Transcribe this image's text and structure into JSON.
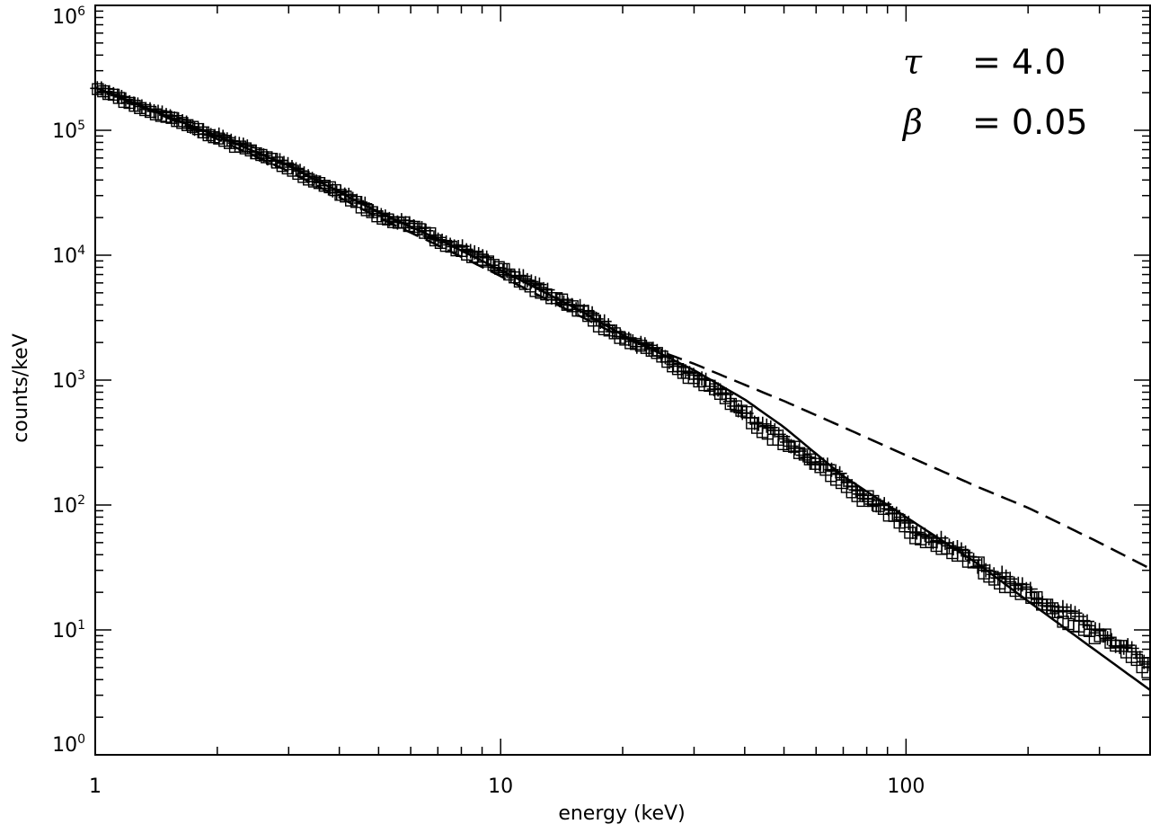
{
  "chart_data": {
    "type": "scatter",
    "title": "",
    "xlabel": "energy (keV)",
    "ylabel": "counts/keV",
    "xscale": "log",
    "yscale": "log",
    "xlim": [
      1,
      400
    ],
    "ylim": [
      1,
      1000000
    ],
    "x_tick_labels": [
      "1",
      "10",
      "100"
    ],
    "y_tick_labels": [
      {
        "base": "10",
        "exp": "0"
      },
      {
        "base": "10",
        "exp": "1"
      },
      {
        "base": "10",
        "exp": "2"
      },
      {
        "base": "10",
        "exp": "3"
      },
      {
        "base": "10",
        "exp": "4"
      },
      {
        "base": "10",
        "exp": "5"
      },
      {
        "base": "10",
        "exp": "6"
      }
    ],
    "annotations": [
      {
        "symbol": "τ",
        "text": "= 4.0"
      },
      {
        "symbol": "β",
        "text": "= 0.05"
      }
    ],
    "series": [
      {
        "name": "data (plus markers)",
        "marker": "plus",
        "x": [
          1.0,
          1.5,
          2.0,
          3.0,
          5.0,
          7.0,
          10.0,
          15.0,
          20.0,
          30.0,
          50.0,
          70.0,
          100.0,
          150.0,
          200.0,
          300.0,
          400.0
        ],
        "y": [
          220000,
          130000,
          90000,
          52000,
          22000,
          14000,
          8000,
          4000,
          2300,
          1100,
          330,
          160,
          70,
          35,
          20,
          10,
          5
        ]
      },
      {
        "name": "data (square markers)",
        "marker": "square",
        "x": [
          1.0,
          1.5,
          2.0,
          3.0,
          5.0,
          7.0,
          10.0,
          15.0,
          20.0,
          30.0,
          50.0,
          70.0,
          100.0,
          150.0,
          200.0,
          300.0,
          400.0
        ],
        "y": [
          215000,
          127000,
          88000,
          50000,
          21000,
          13500,
          7600,
          3800,
          2200,
          1050,
          310,
          150,
          65,
          32,
          18,
          9,
          4.7
        ]
      },
      {
        "name": "model (solid)",
        "line": "solid",
        "x": [
          1.0,
          1.5,
          2.0,
          3.0,
          5.0,
          7.0,
          10.0,
          15.0,
          20.0,
          30.0,
          40.0,
          50.0,
          70.0,
          100.0,
          150.0,
          200.0,
          300.0,
          400.0
        ],
        "y": [
          220000,
          130000,
          90000,
          52000,
          22000,
          13500,
          7600,
          3900,
          2300,
          1200,
          700,
          420,
          170,
          80,
          34,
          17,
          6.5,
          3.3
        ]
      },
      {
        "name": "model (dashed)",
        "line": "dashed",
        "x": [
          1.0,
          1.5,
          2.0,
          3.0,
          5.0,
          7.0,
          10.0,
          15.0,
          20.0,
          30.0,
          50.0,
          70.0,
          100.0,
          150.0,
          200.0,
          300.0,
          400.0
        ],
        "y": [
          220000,
          127000,
          85000,
          47000,
          20000,
          12000,
          6800,
          3500,
          2200,
          1350,
          680,
          420,
          250,
          140,
          95,
          50,
          31
        ]
      }
    ]
  }
}
